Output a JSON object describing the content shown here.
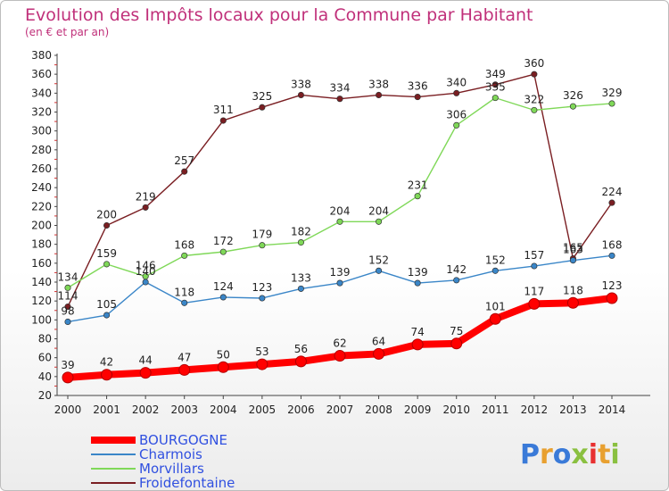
{
  "chart_data": {
    "type": "line",
    "title": "Evolution des Impôts locaux pour la Commune par Habitant",
    "subtitle": "(en € et par an)",
    "x": [
      "2000",
      "2001",
      "2002",
      "2003",
      "2004",
      "2005",
      "2006",
      "2007",
      "2008",
      "2009",
      "2010",
      "2011",
      "2012",
      "2013",
      "2014"
    ],
    "ylim": [
      20,
      380
    ],
    "yticks": [
      20,
      40,
      60,
      80,
      100,
      120,
      140,
      160,
      180,
      200,
      220,
      240,
      260,
      280,
      300,
      320,
      340,
      360,
      380
    ],
    "grid": false,
    "legend_position": "bottom-left",
    "series": [
      {
        "name": "BOURGOGNE",
        "color": "#ff0000",
        "values": [
          39,
          42,
          44,
          47,
          50,
          53,
          56,
          62,
          64,
          74,
          75,
          101,
          117,
          118,
          123
        ]
      },
      {
        "name": "Charmois",
        "color": "#3a86c8",
        "values": [
          98,
          105,
          140,
          118,
          124,
          123,
          133,
          139,
          152,
          139,
          142,
          152,
          157,
          163,
          168
        ]
      },
      {
        "name": "Morvillars",
        "color": "#7fd858",
        "values": [
          134,
          159,
          146,
          168,
          172,
          179,
          182,
          204,
          204,
          231,
          306,
          335,
          322,
          326,
          329
        ]
      },
      {
        "name": "Froidefontaine",
        "color": "#7a1e22",
        "values": [
          114,
          200,
          219,
          257,
          311,
          325,
          338,
          334,
          338,
          336,
          340,
          349,
          360,
          165,
          224
        ]
      }
    ]
  },
  "brand": {
    "text": "Proxiti",
    "letters": [
      "P",
      "r",
      "o",
      "x",
      "i",
      "t",
      "i"
    ],
    "colors": [
      "#3a7ad8",
      "#e8a030",
      "#3a7ad8",
      "#8ac040",
      "#e83030",
      "#e8a030",
      "#8ac040"
    ]
  }
}
